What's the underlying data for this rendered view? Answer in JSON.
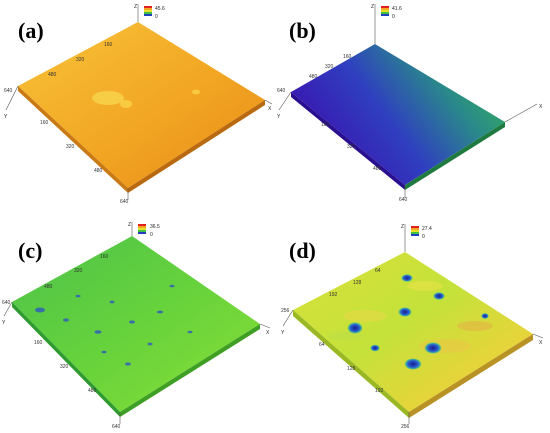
{
  "panels": [
    {
      "id": "a",
      "label": "(a)",
      "colorbar": {
        "max": "45.6",
        "min": "0"
      },
      "ticks": {
        "ax1": [
          "160",
          "320",
          "480",
          "640"
        ],
        "ax2": [
          "160",
          "320",
          "480",
          "640"
        ]
      },
      "axis_letters": {
        "z": "Z",
        "x": "Y",
        "y": "X"
      },
      "surface": {
        "base": "#f0a020",
        "light": "#f7c437",
        "dark": "#e48a16",
        "pits": "#f6d548"
      }
    },
    {
      "id": "b",
      "label": "(b)",
      "colorbar": {
        "max": "41.6",
        "min": "0"
      },
      "ticks": {
        "ax1": [
          "160",
          "320",
          "480",
          "640"
        ],
        "ax2": [
          "160",
          "320",
          "480",
          "640"
        ]
      },
      "axis_letters": {
        "z": "Z",
        "x": "Y",
        "y": "X"
      },
      "surface": {
        "base": "#3a5fb8",
        "light": "#33c24a",
        "dark": "#3a1fb0",
        "pits": "#2f9a6a"
      }
    },
    {
      "id": "c",
      "label": "(c)",
      "colorbar": {
        "max": "36.5",
        "min": "0"
      },
      "ticks": {
        "ax1": [
          "160",
          "320",
          "480",
          "640"
        ],
        "ax2": [
          "160",
          "320",
          "480",
          "640"
        ]
      },
      "axis_letters": {
        "z": "Z",
        "x": "Y",
        "y": "X"
      },
      "surface": {
        "base": "#5fd43f",
        "light": "#8ee03a",
        "dark": "#3fc05e",
        "pits": "#2c52c8"
      }
    },
    {
      "id": "d",
      "label": "(d)",
      "colorbar": {
        "max": "27.4",
        "min": "0"
      },
      "ticks": {
        "ax1": [
          "64",
          "128",
          "192",
          "256"
        ],
        "ax2": [
          "64",
          "128",
          "192",
          "256"
        ]
      },
      "axis_letters": {
        "z": "Z",
        "x": "Y",
        "y": "X"
      },
      "surface": {
        "base": "#c8e23a",
        "light": "#f0e040",
        "dark": "#e8a030",
        "pits": "#1f3fb8"
      }
    }
  ],
  "colors": {
    "axis": "#555555",
    "panel_label": "#000000"
  }
}
